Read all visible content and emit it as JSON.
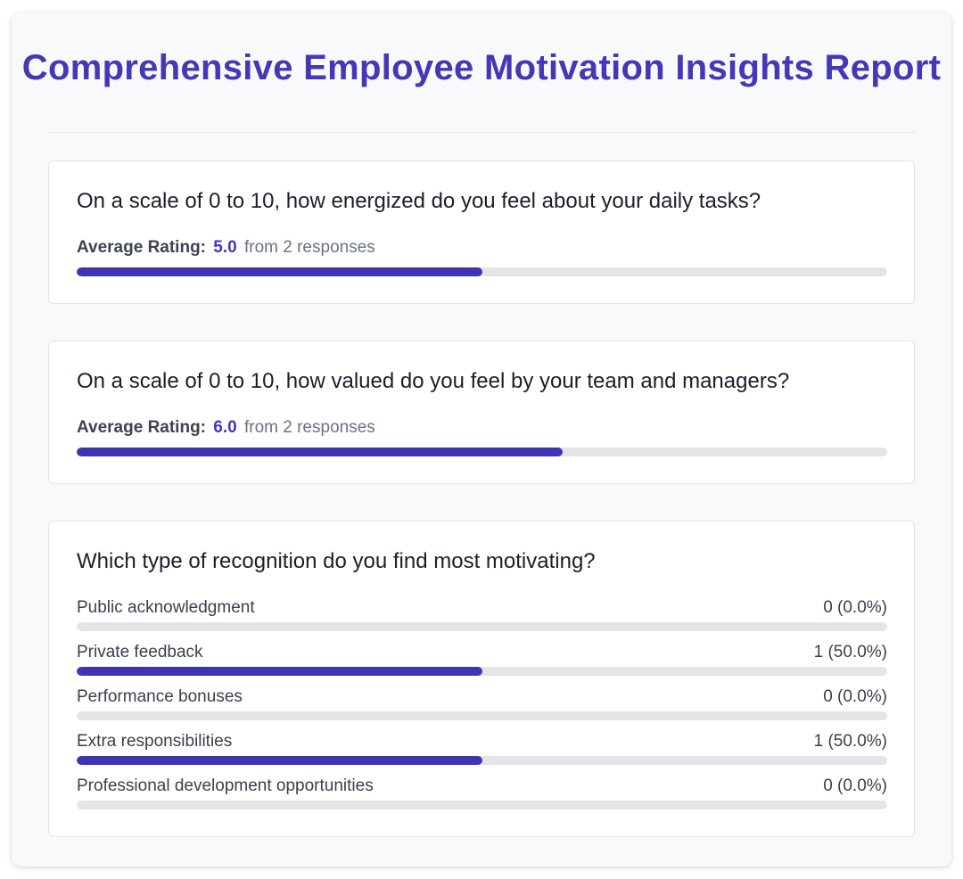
{
  "report": {
    "title": "Comprehensive Employee Motivation Insights Report"
  },
  "colors": {
    "accent": "#4338b5",
    "bar_fill": "#3f35b3",
    "bar_track": "#e4e5e9"
  },
  "questions": [
    {
      "text": "On a scale of 0 to 10, how energized do you feel about your daily tasks?",
      "rating_label": "Average Rating:",
      "average": "5.0",
      "responses_text": "from 2 responses",
      "scale_max": 10,
      "fill_fraction": 0.5
    },
    {
      "text": "On a scale of 0 to 10, how valued do you feel by your team and managers?",
      "rating_label": "Average Rating:",
      "average": "6.0",
      "responses_text": "from 2 responses",
      "scale_max": 10,
      "fill_fraction": 0.6
    }
  ],
  "recognition": {
    "text": "Which type of recognition do you find most motivating?",
    "options": [
      {
        "label": "Public acknowledgment",
        "count": "0 (0.0%)",
        "fraction": 0.0
      },
      {
        "label": "Private feedback",
        "count": "1 (50.0%)",
        "fraction": 0.5
      },
      {
        "label": "Performance bonuses",
        "count": "0 (0.0%)",
        "fraction": 0.0
      },
      {
        "label": "Extra responsibilities",
        "count": "1 (50.0%)",
        "fraction": 0.5
      },
      {
        "label": "Professional development opportunities",
        "count": "0 (0.0%)",
        "fraction": 0.0
      }
    ]
  }
}
